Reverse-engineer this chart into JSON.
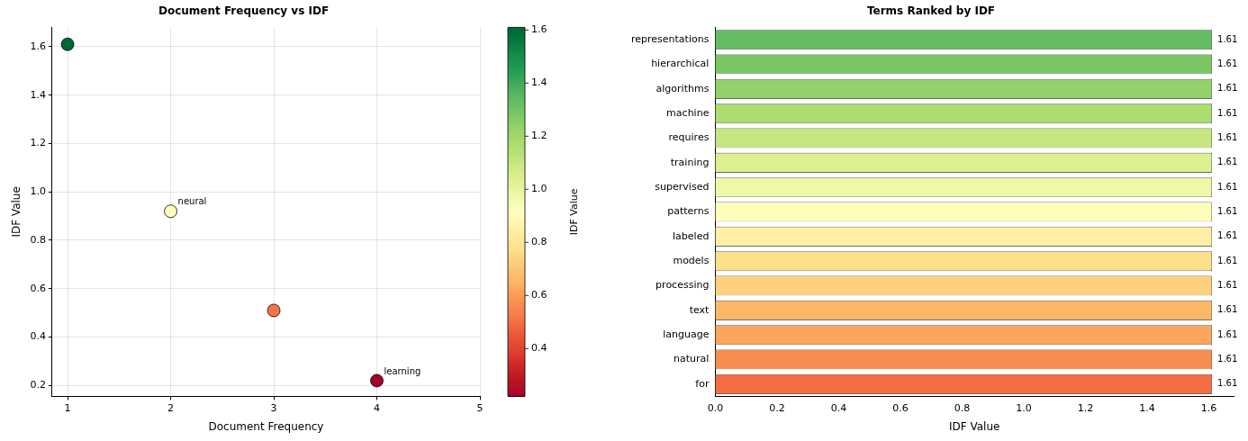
{
  "chart_data": [
    {
      "type": "scatter",
      "title": "Document Frequency vs IDF",
      "xlabel": "Document Frequency",
      "ylabel": "IDF Value",
      "clabel": "IDF Value",
      "x": [
        1,
        2,
        3,
        4
      ],
      "values": [
        1.61,
        0.92,
        0.51,
        0.22
      ],
      "cvalues": [
        1.61,
        0.92,
        0.51,
        0.22
      ],
      "xlim": [
        0.85,
        5
      ],
      "xticks": [
        1,
        2,
        3,
        4,
        5
      ],
      "ylim": [
        0.155,
        1.68
      ],
      "yticks": [
        0.2,
        0.4,
        0.6,
        0.8,
        {
          "value": 1,
          "label": "1.0"
        },
        1.2,
        1.4,
        1.6
      ],
      "clim": [
        0.22,
        1.61
      ],
      "cticks": [
        0.4,
        0.6,
        0.8,
        {
          "value": 1,
          "label": "1.0"
        },
        1.2,
        1.4,
        1.6
      ],
      "grid": true,
      "marker": "circle",
      "annotations": [
        {
          "text": "neural",
          "x": 2,
          "y": 0.92
        },
        {
          "text": "learning",
          "x": 4,
          "y": 0.22
        }
      ]
    },
    {
      "type": "bar",
      "orientation": "horizontal",
      "title": "Terms Ranked by IDF",
      "xlabel": "IDF Value",
      "categories": [
        "representations",
        "hierarchical",
        "algorithms",
        "machine",
        "requires",
        "training",
        "supervised",
        "patterns",
        "labeled",
        "models",
        "processing",
        "text",
        "language",
        "natural",
        "for"
      ],
      "values": [
        1.61,
        1.61,
        1.61,
        1.61,
        1.61,
        1.61,
        1.61,
        1.61,
        1.61,
        1.61,
        1.61,
        1.61,
        1.61,
        1.61,
        1.61
      ],
      "colors": [
        "#66bd63",
        "#7ac665",
        "#93d16a",
        "#addc6f",
        "#c6e77f",
        "#dcf08f",
        "#eef8a8",
        "#fefebd",
        "#fff0a6",
        "#fee08b",
        "#fed07e",
        "#fdb768",
        "#fca55d",
        "#f88d52",
        "#f46d43"
      ],
      "xlim": [
        0,
        1.68
      ],
      "xticks": [
        {
          "value": 0,
          "label": "0.0"
        },
        0.2,
        0.4,
        0.6,
        0.8,
        {
          "value": 1,
          "label": "1.0"
        },
        1.2,
        1.4,
        1.6
      ],
      "data_labels": true,
      "grid": false
    }
  ]
}
